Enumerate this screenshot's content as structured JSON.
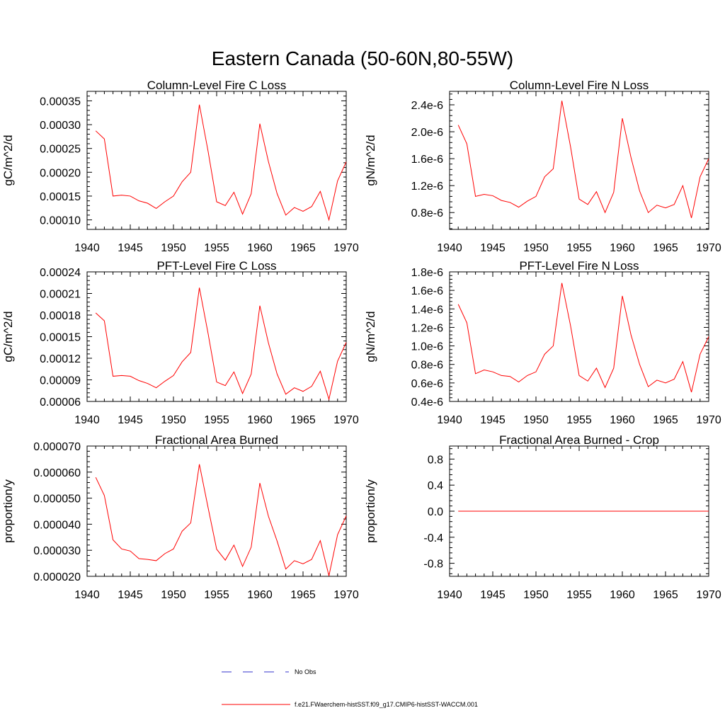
{
  "title": "Eastern Canada (50-60N,80-55W)",
  "colors": {
    "model": "#ff0000",
    "obs": "#3333cc",
    "axis": "#000000"
  },
  "legend": {
    "obs_label": "No Obs",
    "model_label": "f.e21.FWaerchem-histSST.f09_g17.CMIP6-histSST-WACCM.001"
  },
  "chart_data": [
    {
      "type": "line",
      "title": "Column-Level Fire C Loss",
      "ylabel": "gC/m^2/d",
      "xlim": [
        1940,
        1970
      ],
      "ylim": [
        8e-05,
        0.00037
      ],
      "xticks": [
        1940,
        1945,
        1950,
        1955,
        1960,
        1965,
        1970
      ],
      "yticks": [
        0.0001,
        0.00015,
        0.0002,
        0.00025,
        0.0003,
        0.00035
      ],
      "ytick_labels": [
        "0.00010",
        "0.00015",
        "0.00020",
        "0.00025",
        "0.00030",
        "0.00035"
      ],
      "series": [
        {
          "x": [
            1941,
            1942,
            1943,
            1944,
            1945,
            1946,
            1947,
            1948,
            1949,
            1950,
            1951,
            1952,
            1953,
            1954,
            1955,
            1956,
            1957,
            1958,
            1959,
            1960,
            1961,
            1962,
            1963,
            1964,
            1965,
            1966,
            1967,
            1968,
            1969,
            1970
          ],
          "values": [
            0.000287,
            0.00027,
            0.00015,
            0.000152,
            0.00015,
            0.00014,
            0.000135,
            0.000124,
            0.000138,
            0.00015,
            0.00018,
            0.0002,
            0.000342,
            0.000245,
            0.000138,
            0.00013,
            0.000158,
            0.000112,
            0.000155,
            0.000302,
            0.000222,
            0.000155,
            0.00011,
            0.000126,
            0.000118,
            0.000128,
            0.00016,
            0.0001,
            0.000182,
            0.000222
          ]
        }
      ]
    },
    {
      "type": "line",
      "title": "Column-Level Fire N Loss",
      "ylabel": "gN/m^2/d",
      "xlim": [
        1940,
        1970
      ],
      "ylim": [
        5.5e-07,
        2.6e-06
      ],
      "xticks": [
        1940,
        1945,
        1950,
        1955,
        1960,
        1965,
        1970
      ],
      "yticks": [
        8e-07,
        1.2e-06,
        1.6e-06,
        2e-06,
        2.4e-06
      ],
      "ytick_labels": [
        "0.8e-6",
        "1.2e-6",
        "1.6e-6",
        "2.0e-6",
        "2.4e-6"
      ],
      "series": [
        {
          "x": [
            1941,
            1942,
            1943,
            1944,
            1945,
            1946,
            1947,
            1948,
            1949,
            1950,
            1951,
            1952,
            1953,
            1954,
            1955,
            1956,
            1957,
            1958,
            1959,
            1960,
            1961,
            1962,
            1963,
            1964,
            1965,
            1966,
            1967,
            1968,
            1969,
            1970
          ],
          "values": [
            2.1e-06,
            1.82e-06,
            1.04e-06,
            1.07e-06,
            1.05e-06,
            9.8e-07,
            9.5e-07,
            8.8e-07,
            9.7e-07,
            1.04e-06,
            1.33e-06,
            1.45e-06,
            2.46e-06,
            1.78e-06,
            1e-06,
            9.2e-07,
            1.11e-06,
            8e-07,
            1.1e-06,
            2.2e-06,
            1.62e-06,
            1.12e-06,
            8e-07,
            9.1e-07,
            8.7e-07,
            9.2e-07,
            1.2e-06,
            7.2e-07,
            1.33e-06,
            1.6e-06
          ]
        }
      ]
    },
    {
      "type": "line",
      "title": "PFT-Level Fire C Loss",
      "ylabel": "gC/m^2/d",
      "xlim": [
        1940,
        1970
      ],
      "ylim": [
        6e-05,
        0.00024
      ],
      "xticks": [
        1940,
        1945,
        1950,
        1955,
        1960,
        1965,
        1970
      ],
      "yticks": [
        6e-05,
        9e-05,
        0.00012,
        0.00015,
        0.00018,
        0.00021,
        0.00024
      ],
      "ytick_labels": [
        "0.00006",
        "0.00009",
        "0.00012",
        "0.00015",
        "0.00018",
        "0.00021",
        "0.00024"
      ],
      "series": [
        {
          "x": [
            1941,
            1942,
            1943,
            1944,
            1945,
            1946,
            1947,
            1948,
            1949,
            1950,
            1951,
            1952,
            1953,
            1954,
            1955,
            1956,
            1957,
            1958,
            1959,
            1960,
            1961,
            1962,
            1963,
            1964,
            1965,
            1966,
            1967,
            1968,
            1969,
            1970
          ],
          "values": [
            0.000183,
            0.000172,
            9.5e-05,
            9.6e-05,
            9.5e-05,
            8.9e-05,
            8.5e-05,
            7.9e-05,
            8.8e-05,
            9.6e-05,
            0.000115,
            0.000128,
            0.000218,
            0.000155,
            8.7e-05,
            8.2e-05,
            0.000101,
            7.1e-05,
            9.8e-05,
            0.000193,
            0.000141,
            9.8e-05,
            7e-05,
            7.9e-05,
            7.4e-05,
            8.1e-05,
            0.000102,
            6.3e-05,
            0.000116,
            0.000142
          ]
        }
      ]
    },
    {
      "type": "line",
      "title": "PFT-Level Fire N Loss",
      "ylabel": "gN/m^2/d",
      "xlim": [
        1940,
        1970
      ],
      "ylim": [
        4e-07,
        1.8e-06
      ],
      "xticks": [
        1940,
        1945,
        1950,
        1955,
        1960,
        1965,
        1970
      ],
      "yticks": [
        4e-07,
        6e-07,
        8e-07,
        1e-06,
        1.2e-06,
        1.4e-06,
        1.6e-06,
        1.8e-06
      ],
      "ytick_labels": [
        "0.4e-6",
        "0.6e-6",
        "0.8e-6",
        "1.0e-6",
        "1.2e-6",
        "1.4e-6",
        "1.6e-6",
        "1.8e-6"
      ],
      "series": [
        {
          "x": [
            1941,
            1942,
            1943,
            1944,
            1945,
            1946,
            1947,
            1948,
            1949,
            1950,
            1951,
            1952,
            1953,
            1954,
            1955,
            1956,
            1957,
            1958,
            1959,
            1960,
            1961,
            1962,
            1963,
            1964,
            1965,
            1966,
            1967,
            1968,
            1969,
            1970
          ],
          "values": [
            1.45e-06,
            1.25e-06,
            7e-07,
            7.4e-07,
            7.2e-07,
            6.8e-07,
            6.7e-07,
            6.1e-07,
            6.8e-07,
            7.2e-07,
            9.1e-07,
            1e-06,
            1.68e-06,
            1.22e-06,
            6.8e-07,
            6.2e-07,
            7.6e-07,
            5.5e-07,
            7.6e-07,
            1.54e-06,
            1.12e-06,
            8e-07,
            5.6e-07,
            6.3e-07,
            6e-07,
            6.4e-07,
            8.3e-07,
            5e-07,
            9.1e-07,
            1.1e-06
          ]
        }
      ]
    },
    {
      "type": "line",
      "title": "Fractional Area Burned",
      "ylabel": "proportion/y",
      "xlim": [
        1940,
        1970
      ],
      "ylim": [
        2e-05,
        7e-05
      ],
      "xticks": [
        1940,
        1945,
        1950,
        1955,
        1960,
        1965,
        1970
      ],
      "yticks": [
        2e-05,
        3e-05,
        4e-05,
        5e-05,
        6e-05,
        7e-05
      ],
      "ytick_labels": [
        "0.000020",
        "0.000030",
        "0.000040",
        "0.000050",
        "0.000060",
        "0.000070"
      ],
      "series": [
        {
          "x": [
            1941,
            1942,
            1943,
            1944,
            1945,
            1946,
            1947,
            1948,
            1949,
            1950,
            1951,
            1952,
            1953,
            1954,
            1955,
            1956,
            1957,
            1958,
            1959,
            1960,
            1961,
            1962,
            1963,
            1964,
            1965,
            1966,
            1967,
            1968,
            1969,
            1970
          ],
          "values": [
            5.8e-05,
            5.1e-05,
            3.4e-05,
            3.05e-05,
            2.97e-05,
            2.68e-05,
            2.65e-05,
            2.6e-05,
            2.87e-05,
            3.05e-05,
            3.73e-05,
            4.05e-05,
            6.3e-05,
            4.65e-05,
            3.04e-05,
            2.62e-05,
            3.2e-05,
            2.38e-05,
            3.12e-05,
            5.58e-05,
            4.3e-05,
            3.35e-05,
            2.28e-05,
            2.6e-05,
            2.48e-05,
            2.65e-05,
            3.37e-05,
            2.02e-05,
            3.6e-05,
            4.32e-05
          ]
        }
      ]
    },
    {
      "type": "line",
      "title": "Fractional Area Burned - Crop",
      "ylabel": "proportion/y",
      "xlim": [
        1940,
        1970
      ],
      "ylim": [
        -1.0,
        1.0
      ],
      "xticks": [
        1940,
        1945,
        1950,
        1955,
        1960,
        1965,
        1970
      ],
      "yticks": [
        -0.8,
        -0.4,
        0.0,
        0.4,
        0.8
      ],
      "ytick_labels": [
        "-0.8",
        "-0.4",
        "0.0",
        "0.4",
        "0.8"
      ],
      "series": [
        {
          "x": [
            1941,
            1942,
            1943,
            1944,
            1945,
            1946,
            1947,
            1948,
            1949,
            1950,
            1951,
            1952,
            1953,
            1954,
            1955,
            1956,
            1957,
            1958,
            1959,
            1960,
            1961,
            1962,
            1963,
            1964,
            1965,
            1966,
            1967,
            1968,
            1969,
            1970
          ],
          "values": [
            0,
            0,
            0,
            0,
            0,
            0,
            0,
            0,
            0,
            0,
            0,
            0,
            0,
            0,
            0,
            0,
            0,
            0,
            0,
            0,
            0,
            0,
            0,
            0,
            0,
            0,
            0,
            0,
            0,
            0
          ]
        }
      ]
    }
  ]
}
